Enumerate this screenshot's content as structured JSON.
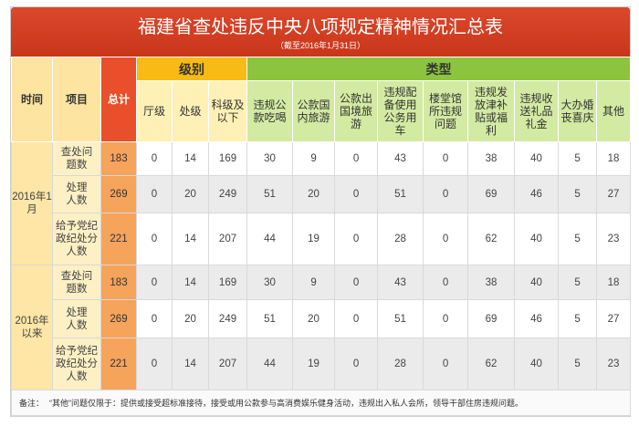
{
  "colors": {
    "banner": "#d83a1c",
    "fixed_head": "#fde4a0",
    "total_head": "#e84f2a",
    "level_head": "#f8ba14",
    "type_head": "#8cc43f",
    "level_sub": "#fff1b6",
    "type_sub": "#d3eaa2",
    "period": "#fde6a6",
    "item": "#fdf0c4",
    "total": "#f6a35b",
    "alt": "#ebebeb"
  },
  "chart_data": {
    "type": "table",
    "title": "福建省查处违反中央八项规定精神情况汇总表",
    "subtitle": "（截至2016年1月31日）",
    "row_header_labels": {
      "period": "时间",
      "item": "项目"
    },
    "total_label": "总计",
    "column_groups": [
      {
        "label": "级别",
        "columns": [
          "厅级",
          "处级",
          "科级及以下"
        ]
      },
      {
        "label": "类型",
        "columns": [
          "违规公款吃喝",
          "公款国内旅游",
          "公款出国境旅游",
          "违规配备使用公务用车",
          "楼堂馆所违规问题",
          "违规发放津补贴或福利",
          "违规收送礼品礼金",
          "大办婚丧喜庆",
          "其他"
        ]
      }
    ],
    "groups": [
      {
        "period": "2016年1月",
        "rows": [
          {
            "item": "查处问题数",
            "total": 183,
            "levels": [
              0,
              14,
              169
            ],
            "types": [
              30,
              9,
              0,
              43,
              0,
              38,
              40,
              5,
              18
            ]
          },
          {
            "item": "处理人数",
            "total": 269,
            "levels": [
              0,
              20,
              249
            ],
            "types": [
              51,
              20,
              0,
              51,
              0,
              69,
              46,
              5,
              27
            ]
          },
          {
            "item": "给予党纪政纪处分人数",
            "total": 221,
            "levels": [
              0,
              14,
              207
            ],
            "types": [
              44,
              19,
              0,
              28,
              0,
              62,
              40,
              5,
              23
            ]
          }
        ]
      },
      {
        "period": "2016年以来",
        "rows": [
          {
            "item": "查处问题数",
            "total": 183,
            "levels": [
              0,
              14,
              169
            ],
            "types": [
              30,
              9,
              0,
              43,
              0,
              38,
              40,
              5,
              18
            ]
          },
          {
            "item": "处理人数",
            "total": 269,
            "levels": [
              0,
              20,
              249
            ],
            "types": [
              51,
              20,
              0,
              51,
              0,
              69,
              46,
              5,
              27
            ]
          },
          {
            "item": "给予党纪政纪处分人数",
            "total": 221,
            "levels": [
              0,
              14,
              207
            ],
            "types": [
              44,
              19,
              0,
              28,
              0,
              62,
              40,
              5,
              23
            ]
          }
        ]
      }
    ],
    "note_label": "备注：",
    "note": "“其他”问题仅限于：提供或接受超标准接待，接受或用公款参与高消费娱乐健身活动，违规出入私人会所，领导干部住房违规问题。"
  }
}
